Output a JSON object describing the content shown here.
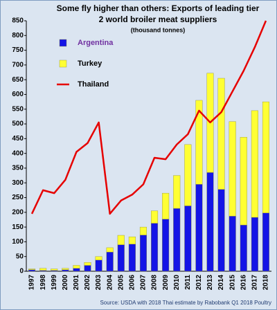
{
  "chart_data": {
    "type": "bar",
    "title": [
      "Some fly higher than others: Exports of leading tier",
      "2 world broiler meat suppliers"
    ],
    "subtitle": "(thousand tonnes)",
    "source": "Source: USDA with 2018 Thai estimate by Rabobank Q1 2018 Poultry",
    "categories": [
      "1997",
      "1998",
      "1999",
      "2000",
      "2001",
      "2002",
      "2003",
      "2004",
      "2005",
      "2006",
      "2007",
      "2008",
      "2009",
      "2010",
      "2011",
      "2012",
      "2013",
      "2014",
      "2015",
      "2016",
      "2017",
      "2018"
    ],
    "series": [
      {
        "name": "Argentina",
        "type": "bar",
        "color": "#1414e6",
        "label_color": "#7030a0",
        "values": [
          5,
          3,
          3,
          5,
          10,
          20,
          38,
          65,
          90,
          92,
          123,
          163,
          177,
          213,
          222,
          295,
          335,
          278,
          187,
          157,
          183,
          198
        ]
      },
      {
        "name": "Turkey",
        "type": "bar",
        "color": "#ffff33",
        "label_color": "#000000",
        "values": [
          3,
          7,
          5,
          5,
          10,
          10,
          12,
          15,
          32,
          25,
          27,
          42,
          88,
          112,
          208,
          285,
          337,
          377,
          321,
          298,
          362,
          377
        ]
      },
      {
        "name": "Thailand",
        "type": "line",
        "color": "#e60000",
        "label_color": "#000000",
        "values": [
          195,
          275,
          265,
          310,
          405,
          435,
          505,
          195,
          240,
          260,
          295,
          385,
          380,
          430,
          465,
          545,
          505,
          540,
          610,
          680,
          760,
          850
        ]
      }
    ],
    "ylim": [
      0,
      850
    ],
    "yticks": [
      0,
      50,
      100,
      150,
      200,
      250,
      300,
      350,
      400,
      450,
      500,
      550,
      600,
      650,
      700,
      750,
      800,
      850
    ],
    "stacked": true,
    "grid": false
  }
}
